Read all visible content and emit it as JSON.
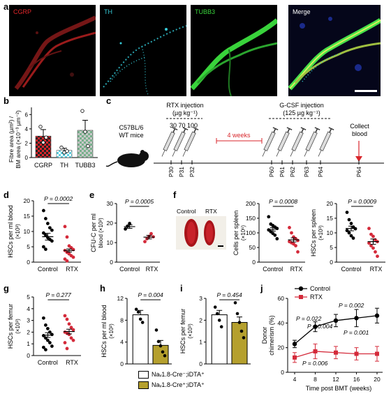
{
  "panel_letters": {
    "a": "a",
    "b": "b",
    "c": "c",
    "d": "d",
    "e": "e",
    "f": "f",
    "g": "g",
    "h": "h",
    "i": "i",
    "j": "j"
  },
  "panel_a": {
    "channels": [
      {
        "label": "CGRP",
        "color": "#e2262a"
      },
      {
        "label": "TH",
        "color": "#36c9d6"
      },
      {
        "label": "TUBB3",
        "color": "#39d33b"
      },
      {
        "label": "Merge",
        "color": "#ffffff"
      }
    ]
  },
  "panel_b": {
    "ylabel_line1": "Fibre area (µm²) /",
    "ylabel_line2": "BM area (×10⁻³ µm⁻²)",
    "yticks": [
      "0",
      "2",
      "4",
      "6"
    ],
    "categories": [
      "CGRP",
      "TH",
      "TUBB3"
    ]
  },
  "panel_c": {
    "mouse_label_1": "C57BL/6",
    "mouse_label_2": "WT mice",
    "rtx_title": "RTX injection",
    "rtx_units": "(µg kg⁻¹)",
    "rtx_doses": "30  70 100",
    "gap_label": "4 weeks",
    "gcsf_title": "G-CSF injection",
    "gcsf_units": "(125 µg kg⁻¹)",
    "collect_1": "Collect",
    "collect_2": "blood",
    "days": [
      "P30",
      "P31",
      "P32",
      "P60",
      "P61",
      "P62",
      "P63",
      "P64",
      "P64"
    ]
  },
  "panel_d": {
    "ylabel": "HSCs per ml blood",
    "ylabel_unit": "(×10²)",
    "p": "P = 0.0002",
    "yticks": [
      "0",
      "5",
      "10",
      "15",
      "20"
    ],
    "xlabels": [
      "Control",
      "RTX"
    ]
  },
  "panel_e": {
    "ylabel": "CFU-C per ml",
    "ylabel2": "blood (×10²)",
    "p": "P = 0.0005",
    "yticks": [
      "0",
      "10",
      "20",
      "30"
    ],
    "xlabels": [
      "Control",
      "RTX"
    ]
  },
  "panel_f": {
    "photo_labels": [
      "Control",
      "RTX"
    ],
    "cells_ylabel": "Cells per spleen",
    "cells_unit": "(×10⁶)",
    "cells_p": "P = 0.0008",
    "cells_yticks": [
      "0",
      "50",
      "100",
      "150",
      "200"
    ],
    "hsc_ylabel": "HSCs per spleen",
    "hsc_unit": "(×10³)",
    "hsc_p": "P = 0.0009",
    "hsc_yticks": [
      "0",
      "5",
      "10",
      "15",
      "20"
    ],
    "xlabels": [
      "Control",
      "RTX"
    ]
  },
  "panel_g": {
    "ylabel": "HSCs per femur",
    "ylabel_unit": "(×10³)",
    "p": "P = 0.277",
    "yticks": [
      "0",
      "1",
      "2",
      "3",
      "4",
      "5"
    ],
    "xlabels": [
      "Control",
      "RTX"
    ]
  },
  "panel_h": {
    "ylabel": "HSCs per ml blood",
    "ylabel_unit": "(×10²)",
    "p": "P = 0.004",
    "yticks": [
      "0",
      "4",
      "8",
      "12"
    ]
  },
  "panel_i": {
    "ylabel": "HSCs per femur",
    "ylabel_unit": "(×10³)",
    "p": "P = 0.454",
    "yticks": [
      "0",
      "1",
      "2",
      "3"
    ]
  },
  "legend_hi": [
    {
      "label": "Naᵥ1.8-Cre⁻;iDTA⁺",
      "color": "#ffffff"
    },
    {
      "label": "Naᵥ1.8-Cre⁺;iDTA⁺",
      "color": "#b5a02e"
    }
  ],
  "panel_j": {
    "ylabel": "Donor",
    "ylabel2": "chimerism (%)",
    "xlabel": "Time post BMT (weeks)",
    "yticks": [
      "0",
      "20",
      "40",
      "60"
    ],
    "xticks": [
      "4",
      "8",
      "12",
      "16",
      "20"
    ],
    "legend": [
      "Control",
      "RTX"
    ],
    "pvals": [
      "P = 0.022",
      "P = 0.002",
      "P = 0.004",
      "P = 0.001",
      "P = 0.006"
    ]
  },
  "chart_data": [
    {
      "panel": "b",
      "type": "bar",
      "categories": [
        "CGRP",
        "TH",
        "TUBB3"
      ],
      "values": [
        3.0,
        1.0,
        3.8
      ],
      "errors": [
        0.9,
        0.3,
        1.4
      ],
      "points": [
        [
          4.3,
          2.1,
          2.8
        ],
        [
          1.4,
          0.7,
          0.9
        ],
        [
          6.5,
          3.6,
          1.6
        ]
      ],
      "ylim": [
        0,
        7
      ],
      "colors": [
        "#d9252b",
        "#5ccfe0",
        "#78b08c"
      ]
    },
    {
      "panel": "d",
      "type": "scatter",
      "categories": [
        "Control",
        "RTX"
      ],
      "means": [
        8.3,
        3.8
      ],
      "sems": [
        1.1,
        0.5
      ],
      "points": [
        [
          16.8,
          14.2,
          12.6,
          11.2,
          10.4,
          9.5,
          8.8,
          8.0,
          7.4,
          6.9,
          5.0,
          4.2
        ],
        [
          11.6,
          8.2,
          5.3,
          4.7,
          4.1,
          3.8,
          3.2,
          2.7,
          2.1,
          1.6,
          1.0,
          0.4
        ]
      ],
      "ylim": [
        0,
        20
      ]
    },
    {
      "panel": "e",
      "type": "scatter",
      "categories": [
        "Control",
        "RTX"
      ],
      "means": [
        18.2,
        12.8
      ],
      "sems": [
        0.9,
        0.9
      ],
      "points": [
        [
          17.0,
          18.4,
          19.8
        ],
        [
          10.5,
          12.0,
          13.2,
          14.6,
          13.0
        ]
      ],
      "ylim": [
        0,
        30
      ]
    },
    {
      "panel": "f-cells",
      "type": "scatter",
      "categories": [
        "Control",
        "RTX"
      ],
      "means": [
        112,
        76
      ],
      "sems": [
        6,
        7
      ],
      "points": [
        [
          155,
          130,
          125,
          120,
          115,
          110,
          104,
          98,
          92,
          80
        ],
        [
          118,
          100,
          86,
          80,
          74,
          70,
          66,
          62,
          56,
          35
        ]
      ],
      "ylim": [
        0,
        200
      ]
    },
    {
      "panel": "f-hsc",
      "type": "scatter",
      "categories": [
        "Control",
        "RTX"
      ],
      "means": [
        11.5,
        7.0
      ],
      "sems": [
        0.8,
        0.9
      ],
      "points": [
        [
          17.0,
          14.5,
          13.2,
          12.0,
          11.4,
          10.8,
          10.0,
          9.0,
          8.2
        ],
        [
          11.5,
          9.5,
          8.8,
          7.6,
          7.0,
          6.5,
          5.6,
          4.8,
          3.5,
          2.0
        ]
      ],
      "ylim": [
        0,
        20
      ]
    },
    {
      "panel": "g",
      "type": "scatter",
      "categories": [
        "Control",
        "RTX"
      ],
      "means": [
        1.75,
        2.05
      ],
      "sems": [
        0.2,
        0.2
      ],
      "points": [
        [
          3.2,
          2.6,
          2.3,
          2.0,
          1.8,
          1.7,
          1.5,
          1.3,
          1.1,
          0.8,
          0.7,
          0.5
        ],
        [
          3.4,
          3.1,
          2.7,
          2.4,
          2.2,
          2.0,
          1.9,
          1.8,
          1.5,
          1.3,
          1.1,
          0.6
        ]
      ],
      "ylim": [
        0,
        5
      ]
    },
    {
      "panel": "h",
      "type": "bar",
      "categories": [
        "Naᵥ1.8-Cre⁻;iDTA⁺",
        "Naᵥ1.8-Cre⁺;iDTA⁺"
      ],
      "values": [
        9.0,
        3.4
      ],
      "errors": [
        0.8,
        0.9
      ],
      "points": [
        [
          10.0,
          9.5,
          8.2,
          7.6
        ],
        [
          6.2,
          4.1,
          3.3,
          2.2,
          1.5
        ]
      ],
      "ylim": [
        0,
        12
      ]
    },
    {
      "panel": "i",
      "type": "bar",
      "categories": [
        "Naᵥ1.8-Cre⁻;iDTA⁺",
        "Naᵥ1.8-Cre⁺;iDTA⁺"
      ],
      "values": [
        2.25,
        1.9
      ],
      "errors": [
        0.2,
        0.25
      ],
      "points": [
        [
          2.6,
          2.3,
          2.0,
          1.7
        ],
        [
          2.8,
          2.3,
          1.9,
          1.5,
          1.2
        ]
      ],
      "ylim": [
        0,
        3
      ]
    },
    {
      "panel": "j",
      "type": "line",
      "x": [
        4,
        8,
        12,
        16,
        20
      ],
      "series": [
        {
          "name": "Control",
          "values": [
            23,
            37,
            42,
            44,
            46
          ],
          "errors": [
            3,
            4,
            5,
            7,
            6
          ]
        },
        {
          "name": "RTX",
          "values": [
            12,
            17,
            16,
            15,
            15
          ],
          "errors": [
            4,
            6,
            5,
            5,
            6
          ]
        }
      ],
      "ylim": [
        0,
        60
      ],
      "xlabel": "Time post BMT (weeks)",
      "ylabel": "Donor chimerism (%)"
    }
  ]
}
